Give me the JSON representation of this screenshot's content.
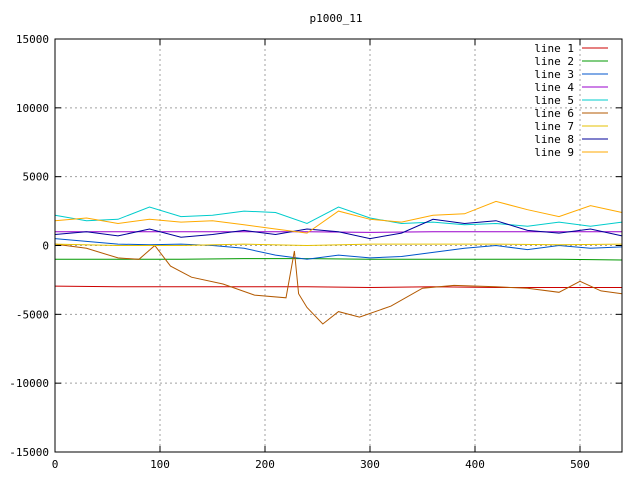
{
  "chart_data": {
    "type": "line",
    "title": "p1000_11",
    "xlabel": "",
    "ylabel": "",
    "xlim": [
      0,
      540
    ],
    "ylim": [
      -15000,
      15000
    ],
    "xticks": [
      0,
      100,
      200,
      300,
      400,
      500
    ],
    "yticks": [
      -15000,
      -10000,
      -5000,
      0,
      5000,
      10000,
      15000
    ],
    "grid": true,
    "legend_position": "top-right",
    "series": [
      {
        "name": "line 1",
        "color": "#cc0000",
        "x": [
          0,
          60,
          120,
          180,
          240,
          300,
          360,
          420,
          480,
          540
        ],
        "y": [
          -2950,
          -3000,
          -3000,
          -3000,
          -3000,
          -3050,
          -3000,
          -3050,
          -3050,
          -3050
        ]
      },
      {
        "name": "line 2",
        "color": "#009900",
        "x": [
          0,
          60,
          120,
          180,
          240,
          300,
          360,
          420,
          480,
          540
        ],
        "y": [
          -1000,
          -1000,
          -1000,
          -950,
          -950,
          -1000,
          -1000,
          -1000,
          -1000,
          -1050
        ]
      },
      {
        "name": "line 3",
        "color": "#0055cc",
        "x": [
          0,
          30,
          60,
          90,
          120,
          150,
          180,
          210,
          240,
          270,
          300,
          330,
          360,
          390,
          420,
          450,
          480,
          510,
          540
        ],
        "y": [
          500,
          300,
          100,
          50,
          100,
          0,
          -200,
          -700,
          -1000,
          -700,
          -900,
          -800,
          -500,
          -200,
          0,
          -300,
          0,
          -200,
          -100
        ]
      },
      {
        "name": "line 4",
        "color": "#9900cc",
        "x": [
          0,
          60,
          120,
          180,
          240,
          300,
          360,
          420,
          480,
          540
        ],
        "y": [
          1000,
          1000,
          1000,
          1000,
          1000,
          950,
          1000,
          1000,
          1000,
          1000
        ]
      },
      {
        "name": "line 5",
        "color": "#00cccc",
        "x": [
          0,
          30,
          60,
          90,
          120,
          150,
          180,
          210,
          240,
          270,
          300,
          330,
          360,
          390,
          420,
          450,
          480,
          510,
          540
        ],
        "y": [
          2200,
          1800,
          1900,
          2800,
          2100,
          2200,
          2500,
          2400,
          1600,
          2800,
          2000,
          1600,
          1700,
          1500,
          1600,
          1400,
          1700,
          1400,
          1700
        ]
      },
      {
        "name": "line 6",
        "color": "#b35900",
        "x": [
          0,
          30,
          60,
          80,
          95,
          110,
          130,
          160,
          190,
          220,
          228,
          232,
          240,
          255,
          270,
          290,
          320,
          350,
          380,
          420,
          450,
          480,
          500,
          520,
          540
        ],
        "y": [
          100,
          -200,
          -900,
          -1000,
          0,
          -1500,
          -2300,
          -2800,
          -3600,
          -3800,
          -400,
          -3500,
          -4500,
          -5700,
          -4800,
          -5200,
          -4400,
          -3100,
          -2900,
          -3000,
          -3100,
          -3400,
          -2600,
          -3300,
          -3500
        ]
      },
      {
        "name": "line 7",
        "color": "#e6c200",
        "x": [
          0,
          60,
          120,
          180,
          240,
          300,
          360,
          420,
          480,
          540
        ],
        "y": [
          100,
          0,
          0,
          100,
          0,
          100,
          100,
          100,
          50,
          100
        ]
      },
      {
        "name": "line 8",
        "color": "#000099",
        "x": [
          0,
          30,
          60,
          90,
          120,
          150,
          180,
          210,
          240,
          270,
          300,
          330,
          360,
          390,
          420,
          450,
          480,
          510,
          540
        ],
        "y": [
          800,
          1000,
          700,
          1200,
          600,
          800,
          1100,
          800,
          1200,
          1000,
          500,
          900,
          1900,
          1600,
          1800,
          1100,
          900,
          1200,
          700
        ]
      },
      {
        "name": "line 9",
        "color": "#ffaa00",
        "x": [
          0,
          30,
          60,
          90,
          120,
          150,
          180,
          210,
          240,
          270,
          300,
          330,
          360,
          390,
          420,
          450,
          480,
          510,
          540
        ],
        "y": [
          1800,
          2000,
          1600,
          1900,
          1700,
          1800,
          1500,
          1200,
          900,
          2500,
          1900,
          1700,
          2200,
          2300,
          3200,
          2600,
          2100,
          2900,
          2400
        ]
      }
    ]
  }
}
